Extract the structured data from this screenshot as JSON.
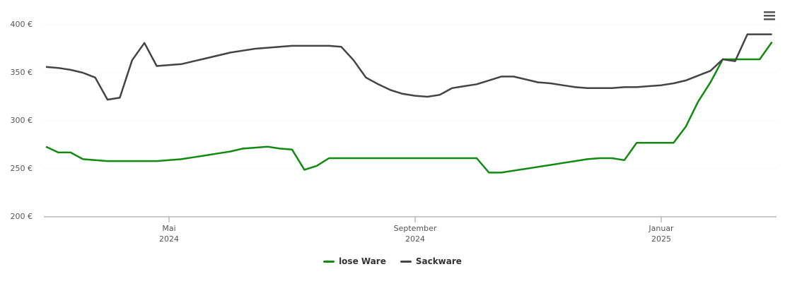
{
  "chart_data": {
    "type": "line",
    "categories": [
      null,
      null,
      null,
      null,
      null,
      null,
      null,
      null,
      null,
      null,
      "Mai\n2024",
      null,
      null,
      null,
      null,
      null,
      null,
      null,
      null,
      null,
      null,
      null,
      null,
      null,
      null,
      null,
      null,
      null,
      null,
      null,
      "September\n2024",
      null,
      null,
      null,
      null,
      null,
      null,
      null,
      null,
      null,
      null,
      null,
      null,
      null,
      null,
      null,
      null,
      null,
      null,
      null,
      "Januar\n2025",
      null,
      null,
      null,
      null,
      null,
      null,
      null,
      null,
      null
    ],
    "series": [
      {
        "name": "lose Ware",
        "color": "#108a0f",
        "values": [
          273,
          267,
          267,
          260,
          259,
          258,
          258,
          258,
          258,
          258,
          259,
          260,
          262,
          264,
          266,
          268,
          271,
          272,
          273,
          271,
          270,
          249,
          253,
          261,
          261,
          261,
          261,
          261,
          261,
          261,
          261,
          261,
          261,
          261,
          261,
          261,
          246,
          246,
          248,
          250,
          252,
          254,
          256,
          258,
          260,
          261,
          261,
          259,
          277,
          277,
          277,
          277,
          294,
          320,
          340,
          364,
          364,
          364,
          364,
          382
        ]
      },
      {
        "name": "Sackware",
        "color": "#434348",
        "values": [
          356,
          355,
          353,
          350,
          345,
          322,
          324,
          363,
          381,
          357,
          358,
          359,
          362,
          365,
          368,
          371,
          373,
          375,
          376,
          377,
          378,
          378,
          378,
          378,
          377,
          363,
          345,
          338,
          332,
          328,
          326,
          325,
          327,
          334,
          336,
          338,
          342,
          346,
          346,
          343,
          340,
          339,
          337,
          335,
          334,
          334,
          334,
          335,
          335,
          336,
          337,
          339,
          342,
          347,
          352,
          364,
          362,
          390,
          390,
          390
        ]
      }
    ],
    "ylim": [
      200,
      400
    ],
    "yticks": [
      {
        "value": 200,
        "label": "200 €"
      },
      {
        "value": 250,
        "label": "250 €"
      },
      {
        "value": 300,
        "label": "300 €"
      },
      {
        "value": 350,
        "label": "350 €"
      },
      {
        "value": 400,
        "label": "400 €"
      }
    ],
    "grid": true
  }
}
